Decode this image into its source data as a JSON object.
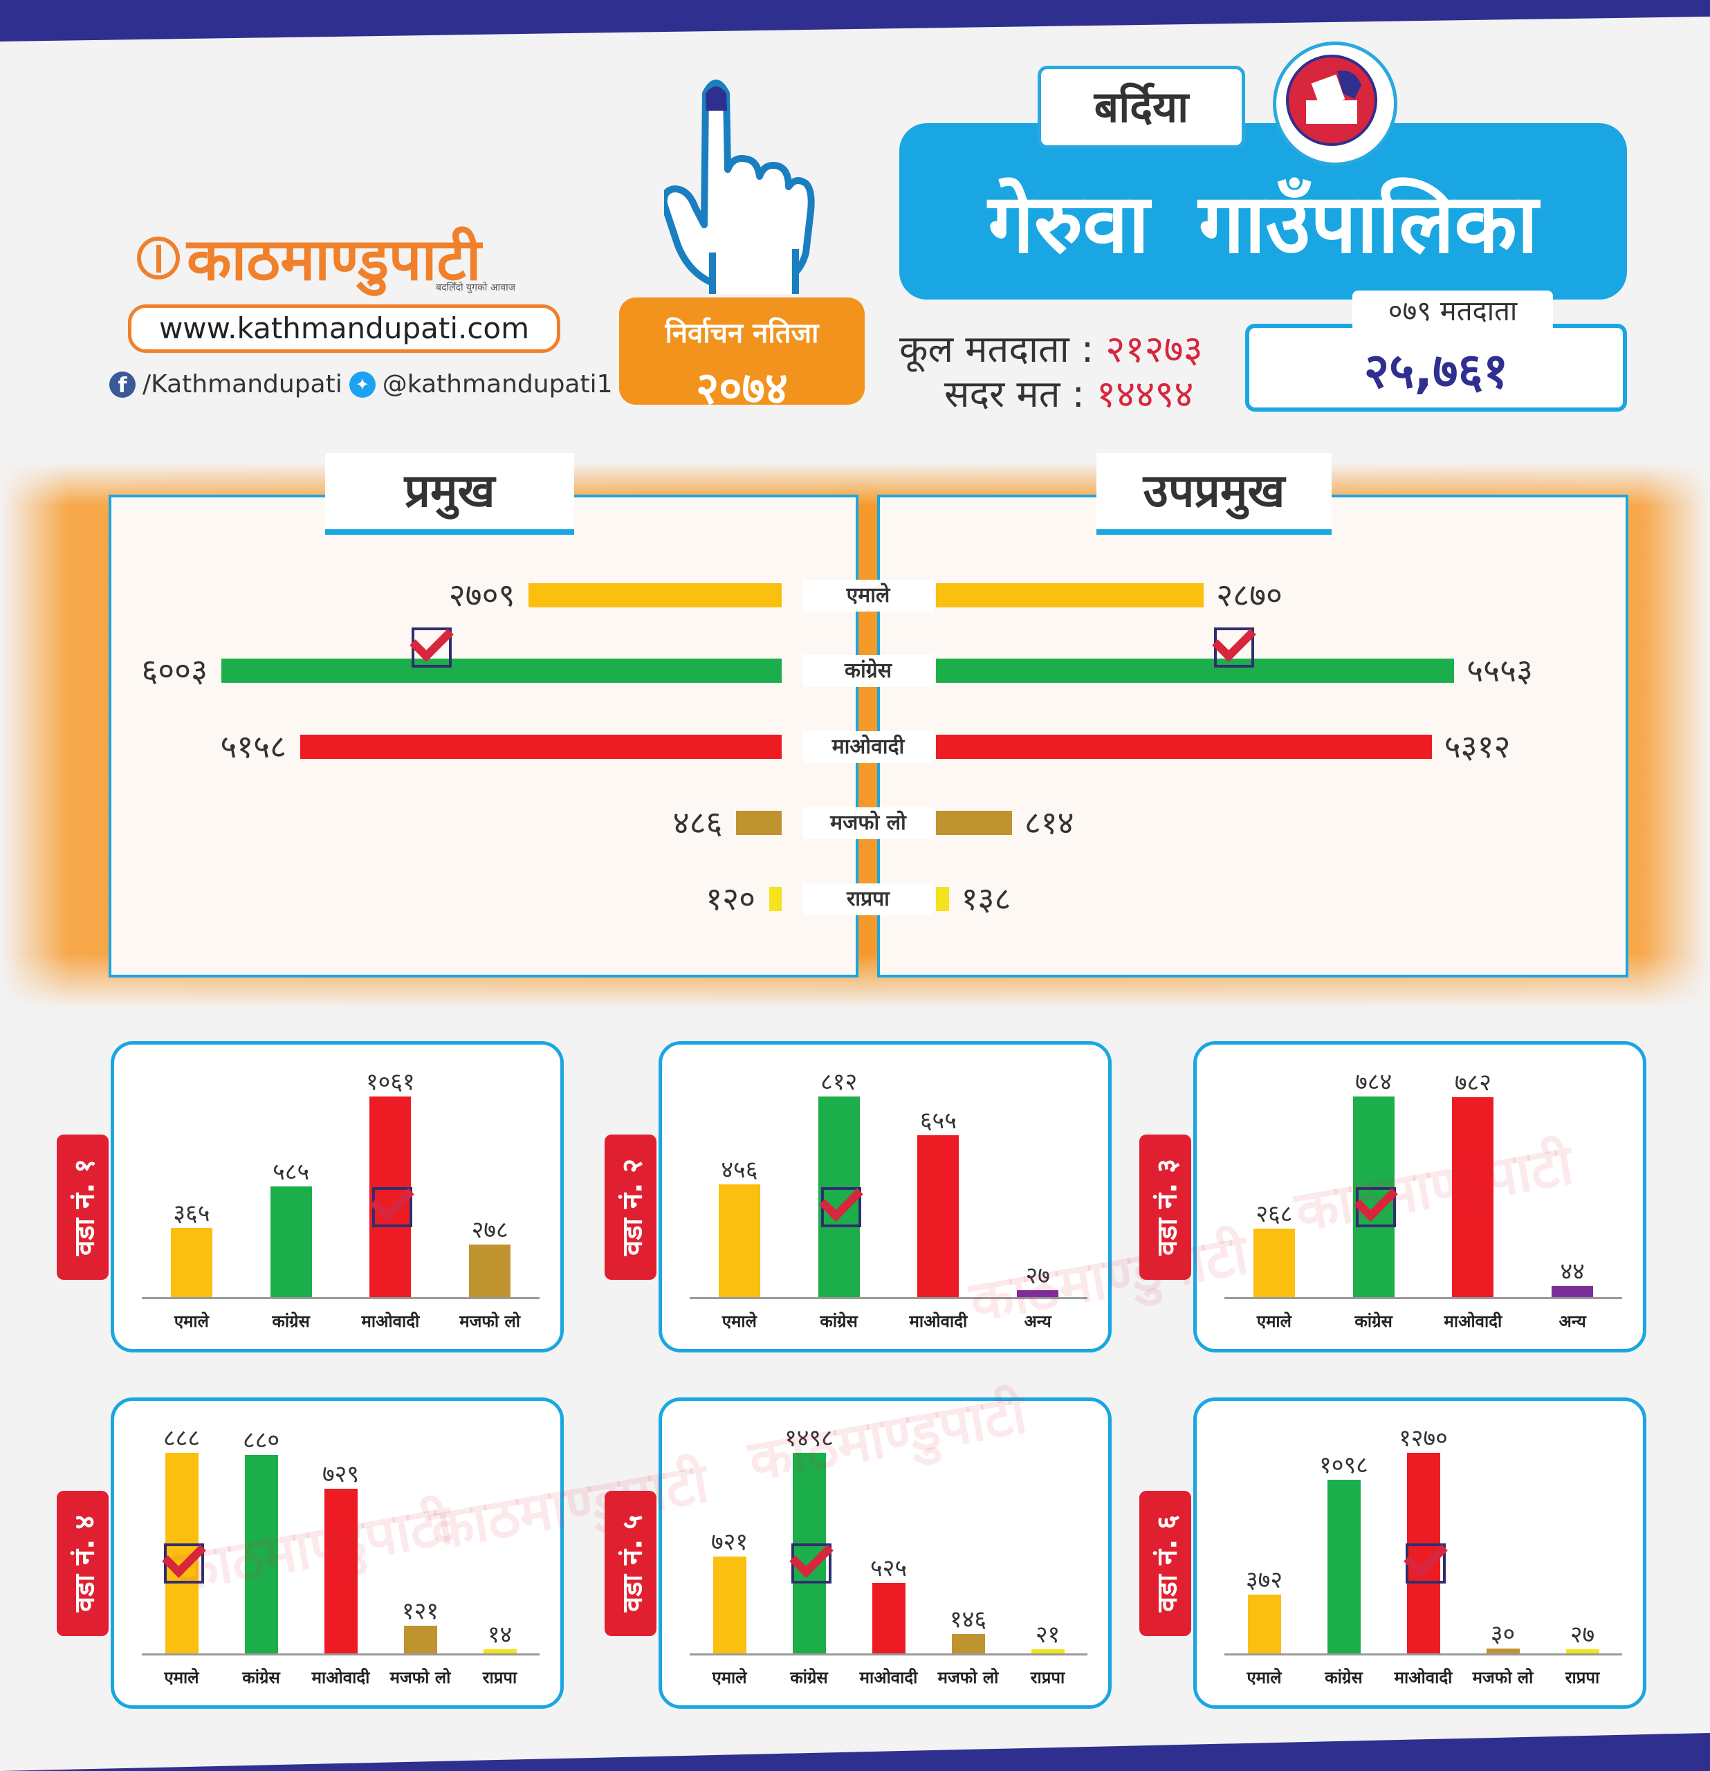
{
  "header": {
    "brand": "काठमाण्डुपाटी",
    "tagline": "बदलिँदो युगको आवाज",
    "url": "www.kathmandupati.com",
    "facebook": "/Kathmandupati",
    "twitter": "@kathmandupati1",
    "result_label": "निर्वाचन नतिजा",
    "result_year": "२०७४",
    "district": "बर्दिया",
    "municipality": "गेरुवा गाउँपालिका",
    "total_voters_label": "कूल मतदाता :",
    "total_voters": "२१२७३",
    "valid_votes_label": "सदर मत :",
    "valid_votes": "१४४९४",
    "voters_079_label": "०७९ मतदाता",
    "voters_079": "२५,७६१"
  },
  "colors": {
    "एमाले": "#fbbf10",
    "कांग्रेस": "#1cae4b",
    "माओवादी": "#ed1c24",
    "मजफो लो": "#c09331",
    "राप्रपा": "#f4e31d",
    "अन्य": "#7b2d9b",
    "brand_orange": "#f0802a",
    "accent_blue": "#1aa6e2",
    "navy": "#2e2f8f"
  },
  "watermark": "काठमाण्डुपाटी",
  "chart_data": [
    {
      "type": "bar",
      "orientation": "horizontal-mirrored",
      "left_title": "प्रमुख",
      "right_title": "उपप्रमुख",
      "categories": [
        "एमाले",
        "कांग्रेस",
        "माओवादी",
        "मजफो लो",
        "राप्रपा"
      ],
      "series": [
        {
          "name": "प्रमुख",
          "values": [
            2709,
            6003,
            5158,
            486,
            120
          ],
          "labels": [
            "२७०९",
            "६००३",
            "५१५८",
            "४८६",
            "१२०"
          ],
          "winner": "कांग्रेस"
        },
        {
          "name": "उपप्रमुख",
          "values": [
            2870,
            5553,
            5312,
            814,
            138
          ],
          "labels": [
            "२८७०",
            "५५५३",
            "५३१२",
            "८१४",
            "१३८"
          ],
          "winner": "कांग्रेस"
        }
      ]
    },
    {
      "type": "bar",
      "ward": "वडा नं. १",
      "categories": [
        "एमाले",
        "कांग्रेस",
        "माओवादी",
        "मजफो लो"
      ],
      "values": [
        365,
        585,
        1061,
        278
      ],
      "labels": [
        "३६५",
        "५८५",
        "१०६१",
        "२७८"
      ],
      "winner": "माओवादी",
      "ylim": [
        0,
        1100
      ]
    },
    {
      "type": "bar",
      "ward": "वडा नं. २",
      "categories": [
        "एमाले",
        "कांग्रेस",
        "माओवादी",
        "अन्य"
      ],
      "values": [
        456,
        812,
        655,
        27
      ],
      "labels": [
        "४५६",
        "८१२",
        "६५५",
        "२७"
      ],
      "winner": "कांग्रेस",
      "ylim": [
        0,
        820
      ]
    },
    {
      "type": "bar",
      "ward": "वडा नं. ३",
      "categories": [
        "एमाले",
        "कांग्रेस",
        "माओवादी",
        "अन्य"
      ],
      "values": [
        268,
        784,
        782,
        44
      ],
      "labels": [
        "२६८",
        "७८४",
        "७८२",
        "४४"
      ],
      "winner": "कांग्रेस",
      "ylim": [
        0,
        800
      ]
    },
    {
      "type": "bar",
      "ward": "वडा नं. ४",
      "categories": [
        "एमाले",
        "कांग्रेस",
        "माओवादी",
        "मजफो लो",
        "राप्रपा"
      ],
      "values": [
        888,
        880,
        729,
        121,
        14
      ],
      "labels": [
        "८८८",
        "८८०",
        "७२९",
        "१२१",
        "१४"
      ],
      "winner": "एमाले",
      "ylim": [
        0,
        890
      ]
    },
    {
      "type": "bar",
      "ward": "वडा नं. ५",
      "categories": [
        "एमाले",
        "कांग्रेस",
        "माओवादी",
        "मजफो लो",
        "राप्रपा"
      ],
      "values": [
        721,
        1498,
        525,
        146,
        21
      ],
      "labels": [
        "७२१",
        "१४९८",
        "५२५",
        "१४६",
        "२१"
      ],
      "winner": "कांग्रेस",
      "ylim": [
        0,
        1500
      ]
    },
    {
      "type": "bar",
      "ward": "वडा नं. ६",
      "categories": [
        "एमाले",
        "कांग्रेस",
        "माओवादी",
        "मजफो लो",
        "राप्रपा"
      ],
      "values": [
        372,
        1098,
        1270,
        30,
        27
      ],
      "labels": [
        "३७२",
        "१०९८",
        "१२७०",
        "३०",
        "२७"
      ],
      "winner": "माओवादी",
      "ylim": [
        0,
        1300
      ]
    }
  ]
}
